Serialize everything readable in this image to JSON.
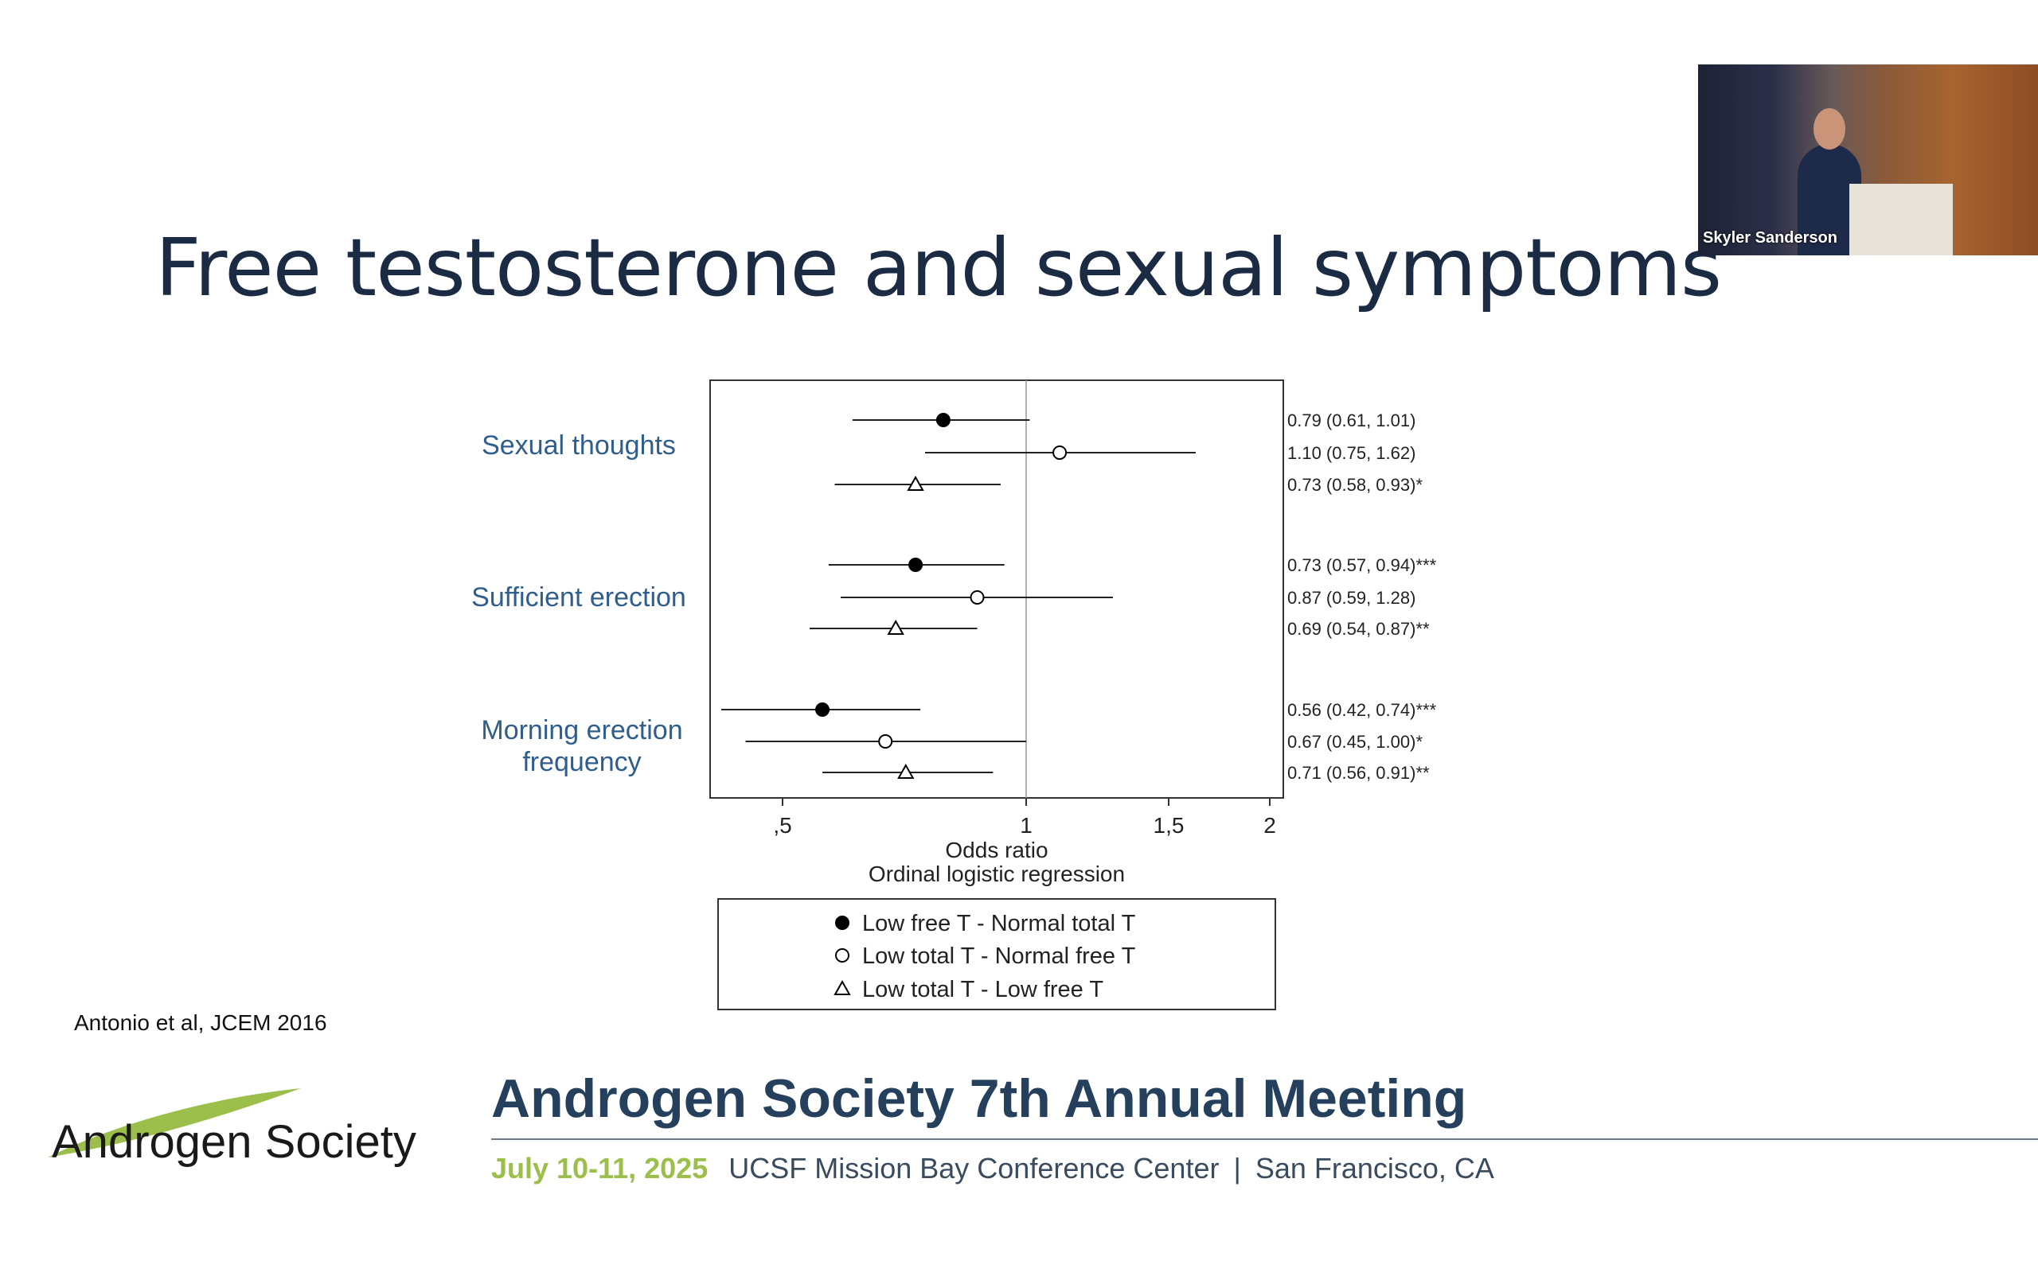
{
  "slide": {
    "title": "Free testosterone and sexual symptoms",
    "citation": "Antonio et al, JCEM 2016"
  },
  "video": {
    "speaker_name": "Skyler Sanderson"
  },
  "logo": {
    "text": "Androgen Society"
  },
  "meeting": {
    "title": "Androgen Society 7th Annual Meeting",
    "date": "July 10-11, 2025",
    "venue": "UCSF Mission Bay Conference Center",
    "separator": "|",
    "city": "San Francisco, CA"
  },
  "chart_data": {
    "type": "scatter",
    "subtype": "forest-plot",
    "xlabel": "Odds ratio",
    "xlabel2": "Ordinal logistic regression",
    "x_scale": "log",
    "xlim": [
      0.4,
      2.1
    ],
    "reference_line": 1,
    "x_ticks": [
      {
        "value": 0.5,
        "label": ",5"
      },
      {
        "value": 1,
        "label": "1"
      },
      {
        "value": 1.5,
        "label": "1,5"
      },
      {
        "value": 2,
        "label": "2"
      }
    ],
    "groups": [
      "Sexual thoughts",
      "Sufficient erection",
      "Morning erection\nfrequency"
    ],
    "series": [
      {
        "name": "Low free T - Normal total T",
        "marker": "filled-circle"
      },
      {
        "name": "Low total T - Normal free T",
        "marker": "open-circle"
      },
      {
        "name": "Low total T - Low free T",
        "marker": "open-triangle"
      }
    ],
    "points": [
      {
        "group": 0,
        "series": 0,
        "or": 0.79,
        "lo": 0.61,
        "hi": 1.01,
        "label": "0.79 (0.61, 1.01)"
      },
      {
        "group": 0,
        "series": 1,
        "or": 1.1,
        "lo": 0.75,
        "hi": 1.62,
        "label": "1.10 (0.75, 1.62)"
      },
      {
        "group": 0,
        "series": 2,
        "or": 0.73,
        "lo": 0.58,
        "hi": 0.93,
        "label": "0.73 (0.58, 0.93)*"
      },
      {
        "group": 1,
        "series": 0,
        "or": 0.73,
        "lo": 0.57,
        "hi": 0.94,
        "label": "0.73 (0.57, 0.94)***"
      },
      {
        "group": 1,
        "series": 1,
        "or": 0.87,
        "lo": 0.59,
        "hi": 1.28,
        "label": "0.87 (0.59, 1.28)"
      },
      {
        "group": 1,
        "series": 2,
        "or": 0.69,
        "lo": 0.54,
        "hi": 0.87,
        "label": "0.69 (0.54, 0.87)**"
      },
      {
        "group": 2,
        "series": 0,
        "or": 0.56,
        "lo": 0.42,
        "hi": 0.74,
        "label": "0.56 (0.42, 0.74)***"
      },
      {
        "group": 2,
        "series": 1,
        "or": 0.67,
        "lo": 0.45,
        "hi": 1.0,
        "label": "0.67 (0.45, 1.00)*"
      },
      {
        "group": 2,
        "series": 2,
        "or": 0.71,
        "lo": 0.56,
        "hi": 0.91,
        "label": "0.71 (0.56, 0.91)**"
      }
    ],
    "legend_position": "bottom",
    "colors": {
      "group_label": "#2f5d8c",
      "marks": "#000000",
      "reference_line": "#999999"
    }
  }
}
